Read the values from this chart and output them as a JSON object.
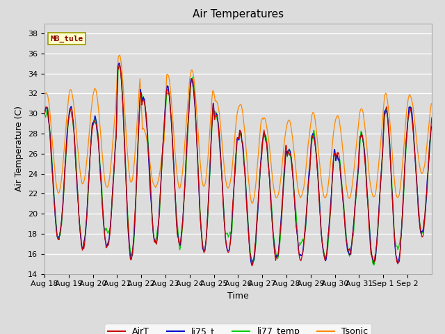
{
  "title": "Air Temperatures",
  "xlabel": "Time",
  "ylabel": "Air Temperature (C)",
  "ylim": [
    14,
    39
  ],
  "yticks": [
    14,
    16,
    18,
    20,
    22,
    24,
    26,
    28,
    30,
    32,
    34,
    36,
    38
  ],
  "background_color": "#dcdcdc",
  "plot_bg_color": "#dcdcdc",
  "fig_bg_color": "#dcdcdc",
  "grid_color": "white",
  "annotation_text": "MB_tule",
  "annotation_color": "#8b0000",
  "annotation_bg": "#ffffcc",
  "annotation_border": "#999900",
  "colors": {
    "AirT": "#cc0000",
    "li75_t": "#0000cc",
    "li77_temp": "#00cc00",
    "Tsonic": "#ff8800"
  },
  "legend_labels": [
    "AirT",
    "li75_t",
    "li77_temp",
    "Tsonic"
  ],
  "x_tick_labels": [
    "Aug 18",
    "Aug 19",
    "Aug 20",
    "Aug 21",
    "Aug 22",
    "Aug 23",
    "Aug 24",
    "Aug 25",
    "Aug 26",
    "Aug 27",
    "Aug 28",
    "Aug 29",
    "Aug 30",
    "Aug 31",
    "Sep 1",
    "Sep 2"
  ],
  "num_days": 16,
  "title_fontsize": 11,
  "axis_label_fontsize": 9,
  "tick_fontsize": 8
}
